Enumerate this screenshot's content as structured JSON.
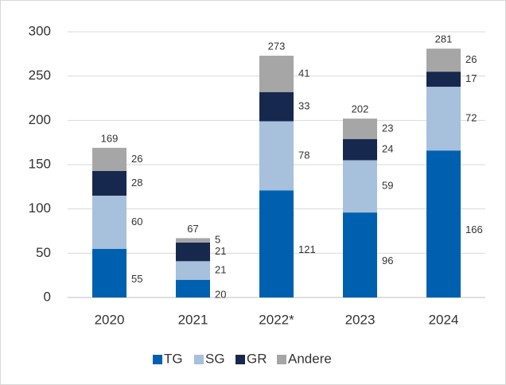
{
  "chart_data": {
    "type": "stacked_bar",
    "categories": [
      "2020",
      "2021",
      "2022*",
      "2023",
      "2024"
    ],
    "series": [
      {
        "name": "TG",
        "color": "#0060b0",
        "values": [
          55,
          20,
          121,
          96,
          166
        ]
      },
      {
        "name": "SG",
        "color": "#a7c0db",
        "values": [
          60,
          21,
          78,
          59,
          72
        ]
      },
      {
        "name": "GR",
        "color": "#17284f",
        "values": [
          28,
          21,
          33,
          24,
          17
        ]
      },
      {
        "name": "Andere",
        "color": "#a6a6a6",
        "values": [
          26,
          5,
          41,
          23,
          26
        ]
      }
    ],
    "totals": [
      169,
      67,
      273,
      202,
      281
    ],
    "ylim": [
      0,
      300
    ],
    "yticks": [
      0,
      50,
      100,
      150,
      200,
      250,
      300
    ],
    "grid": true,
    "legend": "bottom"
  }
}
